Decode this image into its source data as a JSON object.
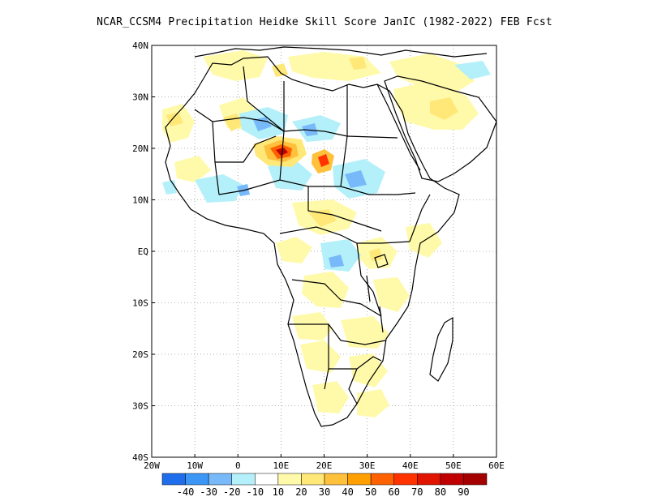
{
  "title": "NCAR_CCSM4  Precipitation Heidke Skill Score JanIC (1982-2022) FEB Fcst",
  "map": {
    "lon_range": [
      -20,
      60
    ],
    "lat_range": [
      -40,
      40
    ],
    "lat_ticks": [
      {
        "value": 40,
        "label": "40N"
      },
      {
        "value": 30,
        "label": "30N"
      },
      {
        "value": 20,
        "label": "20N"
      },
      {
        "value": 10,
        "label": "10N"
      },
      {
        "value": 0,
        "label": "EQ"
      },
      {
        "value": -10,
        "label": "10S"
      },
      {
        "value": -20,
        "label": "20S"
      },
      {
        "value": -30,
        "label": "30S"
      },
      {
        "value": -40,
        "label": "40S"
      }
    ],
    "lon_ticks": [
      {
        "value": -20,
        "label": "20W"
      },
      {
        "value": -10,
        "label": "10W"
      },
      {
        "value": 0,
        "label": "0"
      },
      {
        "value": 10,
        "label": "10E"
      },
      {
        "value": 20,
        "label": "20E"
      },
      {
        "value": 30,
        "label": "30E"
      },
      {
        "value": 40,
        "label": "40E"
      },
      {
        "value": 50,
        "label": "50E"
      },
      {
        "value": 60,
        "label": "60E"
      }
    ],
    "gridlines": "dotted"
  },
  "colorbar": {
    "bins": [
      {
        "color": "#1e6eeb"
      },
      {
        "color": "#3c96f5"
      },
      {
        "color": "#78b9fa"
      },
      {
        "color": "#b4f0fa"
      },
      {
        "color": "#ffffff"
      },
      {
        "color": "#fffaaa"
      },
      {
        "color": "#ffe878"
      },
      {
        "color": "#ffc03c"
      },
      {
        "color": "#ffa000"
      },
      {
        "color": "#ff6000"
      },
      {
        "color": "#ff3200"
      },
      {
        "color": "#e11400"
      },
      {
        "color": "#c00000"
      },
      {
        "color": "#a50000"
      }
    ],
    "labels": [
      "-40",
      "-30",
      "-20",
      "-10",
      "10",
      "20",
      "30",
      "40",
      "50",
      "60",
      "70",
      "80",
      "90"
    ]
  }
}
